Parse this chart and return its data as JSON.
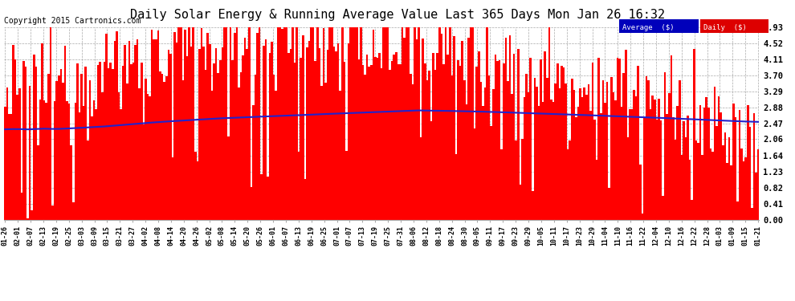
{
  "title": "Daily Solar Energy & Running Average Value Last 365 Days Mon Jan 26 16:32",
  "copyright": "Copyright 2015 Cartronics.com",
  "yticks": [
    0.0,
    0.41,
    0.82,
    1.23,
    1.64,
    2.06,
    2.47,
    2.88,
    3.29,
    3.7,
    4.11,
    4.52,
    4.93
  ],
  "ylim": [
    0.0,
    4.93
  ],
  "bar_color": "#FF0000",
  "avg_color": "#2222CC",
  "bg_color": "#FFFFFF",
  "plot_bg_color": "#FFFFFF",
  "grid_color": "#AAAAAA",
  "title_fontsize": 11,
  "copyright_fontsize": 7,
  "legend_avg_color": "#0000BB",
  "legend_daily_color": "#DD0000",
  "legend_text_color": "#FFFFFF",
  "n_days": 365,
  "xtick_labels": [
    "01-26",
    "02-01",
    "02-07",
    "02-13",
    "02-19",
    "02-25",
    "03-03",
    "03-09",
    "03-15",
    "03-21",
    "03-27",
    "04-02",
    "04-08",
    "04-14",
    "04-20",
    "04-26",
    "05-02",
    "05-08",
    "05-14",
    "05-20",
    "05-26",
    "06-01",
    "06-07",
    "06-13",
    "06-19",
    "06-25",
    "07-01",
    "07-07",
    "07-13",
    "07-19",
    "07-25",
    "07-31",
    "08-06",
    "08-12",
    "08-18",
    "08-24",
    "08-30",
    "09-05",
    "09-11",
    "09-17",
    "09-23",
    "09-29",
    "10-05",
    "10-11",
    "10-17",
    "10-23",
    "10-29",
    "11-04",
    "11-10",
    "11-16",
    "11-22",
    "12-04",
    "12-10",
    "12-16",
    "12-22",
    "12-28",
    "01-03",
    "01-09",
    "01-15",
    "01-21"
  ]
}
